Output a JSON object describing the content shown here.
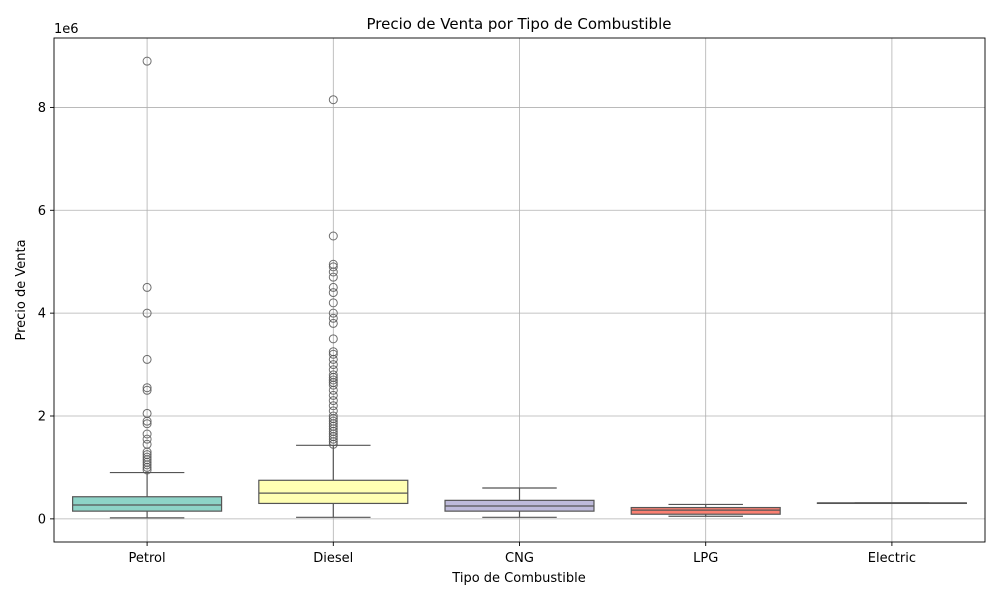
{
  "chart_data": {
    "type": "box",
    "title": "Precio de Venta por Tipo de Combustible",
    "xlabel": "Tipo de Combustible",
    "ylabel": "Precio de Venta",
    "y_scale_label": "1e6",
    "ylim": [
      -450000,
      9350000
    ],
    "yticks": [
      0,
      2000000,
      4000000,
      6000000,
      8000000
    ],
    "ytick_labels": [
      "0",
      "2",
      "4",
      "6",
      "8"
    ],
    "grid": true,
    "categories": [
      "Petrol",
      "Diesel",
      "CNG",
      "LPG",
      "Electric"
    ],
    "colors": [
      "#8dd3c7",
      "#ffffb3",
      "#bebada",
      "#fb8072",
      "#80b1d3"
    ],
    "boxes": [
      {
        "name": "Petrol",
        "whisker_low": 20000,
        "q1": 150000,
        "median": 270000,
        "q3": 430000,
        "whisker_high": 900000,
        "outliers": [
          8900000,
          4500000,
          4000000,
          3100000,
          2550000,
          2500000,
          2050000,
          1900000,
          1850000,
          1650000,
          1550000,
          1450000,
          1300000,
          1250000,
          1200000,
          1150000,
          1100000,
          1050000,
          1000000,
          950000
        ]
      },
      {
        "name": "Diesel",
        "whisker_low": 30000,
        "q1": 300000,
        "median": 500000,
        "q3": 750000,
        "whisker_high": 1430000,
        "outliers": [
          8150000,
          5500000,
          4950000,
          4900000,
          4800000,
          4700000,
          4500000,
          4400000,
          4200000,
          4000000,
          3900000,
          3800000,
          3500000,
          3250000,
          3200000,
          3100000,
          3000000,
          2900000,
          2800000,
          2750000,
          2700000,
          2650000,
          2600000,
          2500000,
          2400000,
          2300000,
          2200000,
          2100000,
          2000000,
          1950000,
          1900000,
          1850000,
          1800000,
          1750000,
          1700000,
          1650000,
          1600000,
          1550000,
          1500000,
          1450000
        ]
      },
      {
        "name": "CNG",
        "whisker_low": 30000,
        "q1": 150000,
        "median": 250000,
        "q3": 360000,
        "whisker_high": 600000,
        "outliers": []
      },
      {
        "name": "LPG",
        "whisker_low": 50000,
        "q1": 90000,
        "median": 170000,
        "q3": 220000,
        "whisker_high": 280000,
        "outliers": []
      },
      {
        "name": "Electric",
        "whisker_low": 310000,
        "q1": 310000,
        "median": 310000,
        "q3": 310000,
        "whisker_high": 310000,
        "outliers": []
      }
    ]
  }
}
